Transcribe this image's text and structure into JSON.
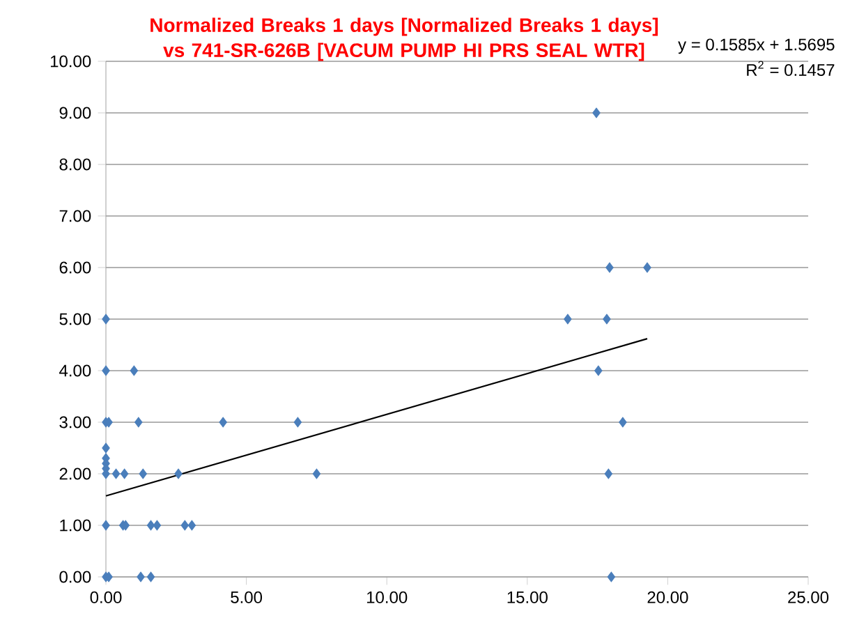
{
  "chart_data": {
    "type": "scatter",
    "title": "Normalized Breaks 1 days [Normalized Breaks 1 days] vs 741-SR-626B [VACUM PUMP HI PRS SEAL WTR]",
    "annotations": [
      "y = 0.1585x + 1.5695",
      "R$^{2}$ = 0.1457"
    ],
    "series": [
      {
        "marker": "diamond",
        "color": "#4a7ebb",
        "x": [
          0,
          0,
          1.0,
          0,
          0.1,
          1.16,
          4.17,
          6.83,
          0,
          0,
          0,
          0,
          0,
          0.36,
          0.66,
          1.32,
          2.58,
          7.5,
          0,
          0.61,
          0.7,
          1.6,
          1.82,
          2.81,
          3.06,
          0,
          0.1,
          1.24,
          1.6,
          17.46,
          17.93,
          19.27,
          16.44,
          17.83,
          17.53,
          18.4,
          17.89,
          17.99
        ],
        "values": [
          5,
          4,
          4,
          3,
          3,
          3,
          3,
          3,
          2.5,
          2.3,
          2.2,
          2.1,
          2,
          2,
          2,
          2,
          2,
          2,
          1,
          1,
          1,
          1,
          1,
          1,
          1,
          0,
          0,
          0,
          0,
          9,
          6,
          6,
          5,
          5,
          4,
          3,
          2,
          0
        ]
      },
      {
        "type": "line",
        "marker": "none",
        "color": "#000000",
        "x": [
          0,
          19.27
        ],
        "values": [
          1.57,
          4.62
        ]
      }
    ],
    "grid": "y",
    "xlim": [
      0,
      25
    ],
    "ylim": [
      0,
      10
    ],
    "xticks": [
      {
        "value": 0,
        "label": "0.00"
      },
      {
        "value": 5,
        "label": "5.00"
      },
      {
        "value": 10,
        "label": "10.00"
      },
      {
        "value": 15,
        "label": "15.00"
      },
      {
        "value": 20,
        "label": "20.00"
      },
      {
        "value": 25,
        "label": "25.00"
      }
    ],
    "yticks": [
      {
        "value": 0,
        "label": "0.00"
      },
      {
        "value": 1,
        "label": "1.00"
      },
      {
        "value": 2,
        "label": "2.00"
      },
      {
        "value": 3,
        "label": "3.00"
      },
      {
        "value": 4,
        "label": "4.00"
      },
      {
        "value": 5,
        "label": "5.00"
      },
      {
        "value": 6,
        "label": "6.00"
      },
      {
        "value": 7,
        "label": "7.00"
      },
      {
        "value": 8,
        "label": "8.00"
      },
      {
        "value": 9,
        "label": "9.00"
      },
      {
        "value": 10,
        "label": "10.00"
      }
    ]
  }
}
